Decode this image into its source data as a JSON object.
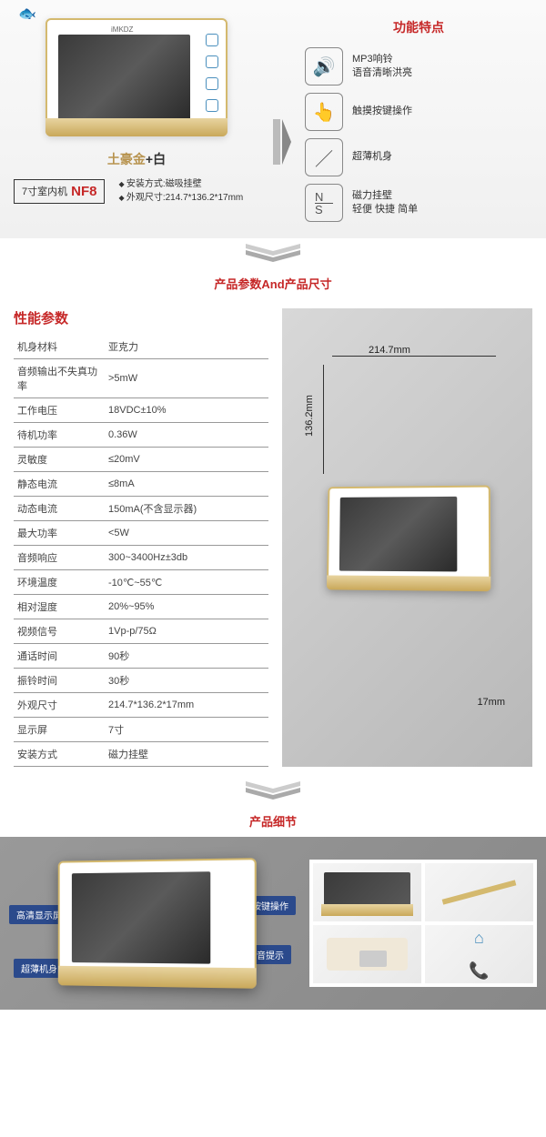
{
  "section1": {
    "decoration": "🐟",
    "colorLabel": {
      "gold": "土豪金",
      "sep": "+",
      "white": "白"
    },
    "modelPrefix": "7寸室内机",
    "modelCode": "NF8",
    "installSpec": "安装方式:磁吸挂壁",
    "dimSpec": "外观尺寸:214.7*136.2*17mm",
    "logo": "iMKDZ"
  },
  "features": {
    "title": "功能特点",
    "items": [
      {
        "icon": "🔊",
        "line1": "MP3响铃",
        "line2": "语音清晰洪亮"
      },
      {
        "icon": "👆",
        "line1": "触摸按键操作",
        "line2": ""
      },
      {
        "icon": "／",
        "line1": "超薄机身",
        "line2": ""
      },
      {
        "icon": "N/S",
        "line1": "磁力挂壁",
        "line2": "轻便 快捷 简单"
      }
    ]
  },
  "sectionTitle2": {
    "left": "产品参数",
    "mid": "And",
    "right": "产品尺寸"
  },
  "specTable": {
    "title": "性能参数",
    "rows": [
      [
        "机身材料",
        "亚克力"
      ],
      [
        "音频输出不失真功率",
        ">5mW"
      ],
      [
        "工作电压",
        "18VDC±10%"
      ],
      [
        "待机功率",
        "0.36W"
      ],
      [
        "灵敏度",
        "≤20mV"
      ],
      [
        "静态电流",
        "≤8mA"
      ],
      [
        "动态电流",
        "150mA(不含显示器)"
      ],
      [
        "最大功率",
        "<5W"
      ],
      [
        "音频响应",
        "300~3400Hz±3db"
      ],
      [
        "环境温度",
        "-10℃~55℃"
      ],
      [
        "相对湿度",
        "20%~95%"
      ],
      [
        "视频信号",
        "1Vp-p/75Ω"
      ],
      [
        "通话时间",
        "90秒"
      ],
      [
        "振铃时间",
        "30秒"
      ],
      [
        "外观尺寸",
        "214.7*136.2*17mm"
      ],
      [
        "显示屏",
        "7寸"
      ],
      [
        "安装方式",
        "磁力挂壁"
      ]
    ]
  },
  "dimensions": {
    "width": "214.7mm",
    "height": "136.2mm",
    "depth": "17mm"
  },
  "sectionTitle3": "产品细节",
  "callouts": {
    "c1": "高清显示屏",
    "c2": "超薄机身",
    "c3": "按键操作",
    "c4": "语音提示"
  },
  "colors": {
    "red": "#c62828",
    "gold": "#c9a85a",
    "goldLight": "#e8d4a0",
    "iconBlue": "#4a8fbd",
    "calloutBlue": "#2b4a8c",
    "screenDark": "#3a3a3a",
    "greyBg": "#888888"
  }
}
